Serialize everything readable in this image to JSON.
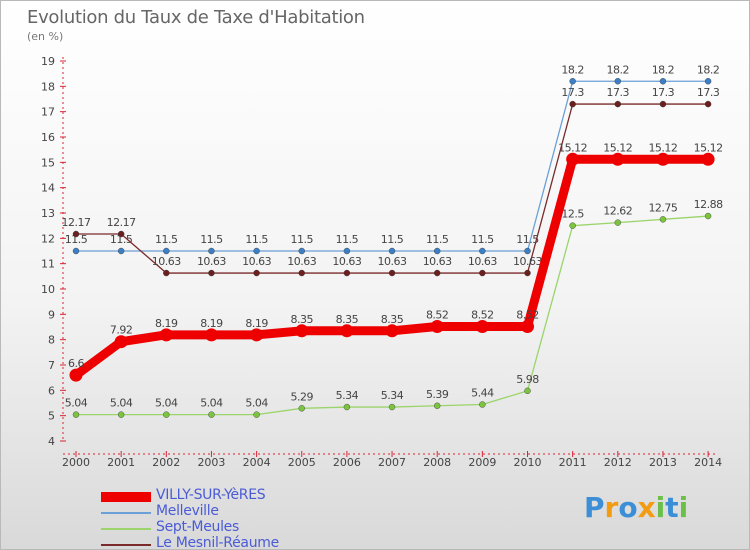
{
  "title": "Evolution du Taux de Taxe d'Habitation",
  "subtitle": "(en %)",
  "chart_data": {
    "type": "line",
    "x": [
      "2000",
      "2001",
      "2002",
      "2003",
      "2004",
      "2005",
      "2006",
      "2007",
      "2008",
      "2009",
      "2010",
      "2011",
      "2012",
      "2013",
      "2014"
    ],
    "ylim": [
      4,
      19
    ],
    "yticks": [
      4,
      5,
      6,
      7,
      8,
      9,
      10,
      11,
      12,
      13,
      14,
      15,
      16,
      17,
      18,
      19
    ],
    "grid": false,
    "series": [
      {
        "name": "Melleville",
        "color": "#6a9fd8",
        "marker": "#3c7fc5",
        "values": [
          11.5,
          11.5,
          11.5,
          11.5,
          11.5,
          11.5,
          11.5,
          11.5,
          11.5,
          11.5,
          11.5,
          18.2,
          18.2,
          18.2,
          18.2
        ],
        "labels": [
          "11.5",
          "11.5",
          "11.5",
          "11.5",
          "11.5",
          "11.5",
          "11.5",
          "11.5",
          "11.5",
          "11.5",
          "11.5",
          "18.2",
          "18.2",
          "18.2",
          "18.2"
        ]
      },
      {
        "name": "Le Mesnil-Réaume",
        "color": "#7a2a2a",
        "marker": "#6b1f1f",
        "values": [
          12.17,
          12.17,
          10.63,
          10.63,
          10.63,
          10.63,
          10.63,
          10.63,
          10.63,
          10.63,
          10.63,
          17.3,
          17.3,
          17.3,
          17.3
        ],
        "labels": [
          "12.17",
          "12.17",
          "10.63",
          "10.63",
          "10.63",
          "10.63",
          "10.63",
          "10.63",
          "10.63",
          "10.63",
          "10.63",
          "17.3",
          "17.3",
          "17.3",
          "17.3"
        ]
      },
      {
        "name": "Sept-Meules",
        "color": "#9ad46a",
        "marker": "#7cc43f",
        "values": [
          5.04,
          5.04,
          5.04,
          5.04,
          5.04,
          5.29,
          5.34,
          5.34,
          5.39,
          5.44,
          5.98,
          12.5,
          12.62,
          12.75,
          12.88
        ],
        "labels": [
          "5.04",
          "5.04",
          "5.04",
          "5.04",
          "5.04",
          "5.29",
          "5.34",
          "5.34",
          "5.39",
          "5.44",
          "5.98",
          "12.5",
          "12.62",
          "12.75",
          "12.88"
        ]
      },
      {
        "name": "VILLY-SUR-YèRES",
        "color": "#ee0000",
        "marker": "#ee0000",
        "values": [
          6.6,
          7.92,
          8.19,
          8.19,
          8.19,
          8.35,
          8.35,
          8.35,
          8.52,
          8.52,
          8.52,
          15.12,
          15.12,
          15.12,
          15.12
        ],
        "labels": [
          "6.6",
          "7.92",
          "8.19",
          "8.19",
          "8.19",
          "8.35",
          "8.35",
          "8.35",
          "8.52",
          "8.52",
          "8.52",
          "15.12",
          "15.12",
          "15.12",
          "15.12"
        ]
      }
    ]
  },
  "legend": [
    {
      "label": "VILLY-SUR-YèRES",
      "color": "#ee0000",
      "thick": true
    },
    {
      "label": "Melleville",
      "color": "#6a9fd8",
      "thick": false
    },
    {
      "label": "Sept-Meules",
      "color": "#9ad46a",
      "thick": false
    },
    {
      "label": "Le Mesnil-Réaume",
      "color": "#7a2a2a",
      "thick": false
    }
  ],
  "logo": {
    "letters": [
      "P",
      "r",
      "o",
      "x",
      "i",
      "t",
      "i"
    ],
    "colors": [
      "#3c8fd6",
      "#f39c12",
      "#3c8fd6",
      "#f39c12",
      "#6cc04a",
      "#3c8fd6",
      "#6cc04a"
    ]
  }
}
